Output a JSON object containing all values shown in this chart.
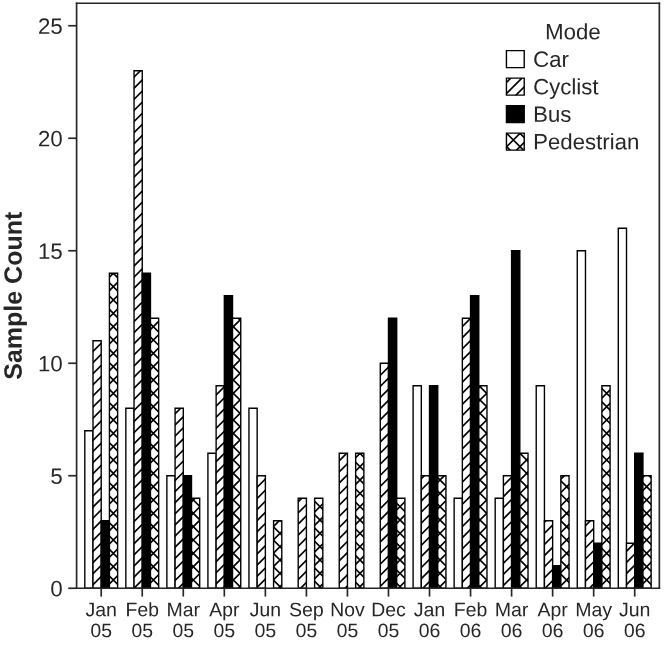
{
  "chart_data": {
    "type": "bar",
    "ylabel": "Sample Count",
    "legend_title": "Mode",
    "legend": "top right",
    "grid": false,
    "categories": [
      "Jan\n05",
      "Feb\n05",
      "Mar\n05",
      "Apr\n05",
      "Jun\n05",
      "Sep\n05",
      "Nov\n05",
      "Dec\n05",
      "Jan\n06",
      "Feb\n06",
      "Mar\n06",
      "Apr\n06",
      "May\n06",
      "Jun\n06"
    ],
    "ylim": [
      0,
      26
    ],
    "yticks": [
      0,
      5,
      10,
      15,
      20,
      25
    ],
    "series": [
      {
        "name": "Car",
        "color": "#ffffff",
        "values": [
          7,
          8,
          5,
          6,
          8,
          null,
          null,
          null,
          9,
          4,
          4,
          9,
          15,
          16
        ]
      },
      {
        "name": "Cyclist",
        "color": "#000000",
        "values": [
          11,
          23,
          8,
          9,
          5,
          4,
          6,
          10,
          5,
          12,
          5,
          3,
          3,
          2
        ]
      },
      {
        "name": "Bus",
        "color": "#000000",
        "values": [
          3,
          14,
          5,
          13,
          null,
          null,
          null,
          12,
          9,
          13,
          15,
          1,
          2,
          6
        ]
      },
      {
        "name": "Pedestrian",
        "color": "#000000",
        "values": [
          14,
          12,
          4,
          12,
          3,
          4,
          6,
          4,
          5,
          9,
          6,
          5,
          9,
          5
        ]
      }
    ]
  }
}
